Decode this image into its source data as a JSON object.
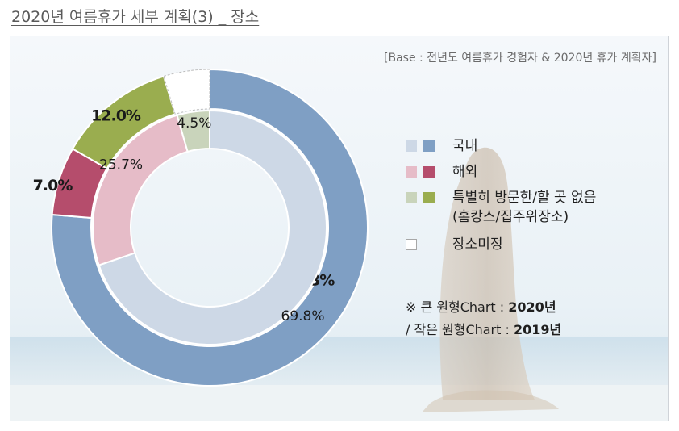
{
  "header": {
    "title": "2020년 여름휴가 세부 계획(3) _ 장소"
  },
  "base_note": "[Base : 전년도 여름휴가 경험자 & 2020년 휴가 계획자]",
  "legend": {
    "items": [
      {
        "label": "국내",
        "color_2020": "#7f9fc4",
        "color_2019": "#cdd8e6"
      },
      {
        "label": "해외",
        "color_2020": "#b54d6c",
        "color_2019": "#e6bcc8"
      },
      {
        "label": "특별히 방문한/할 곳 없음",
        "label_line2": "(홈캉스/집주위장소)",
        "color_2020": "#9aad4f",
        "color_2019": "#c9d4bb"
      },
      {
        "label": "장소미정",
        "color_2020": "#ffffff",
        "color_2019": "#ffffff"
      }
    ]
  },
  "footnote": {
    "line1_prefix": "※ 큰 원형Chart : ",
    "line1_year": "2020년",
    "line2_prefix": "/ 작은 원형Chart : ",
    "line2_year": "2019년"
  },
  "chart_data": [
    {
      "type": "pie",
      "subtype": "donut-outer",
      "name": "2020년",
      "categories": [
        "국내",
        "해외",
        "특별히 방문한/할 곳 없음 (홈캉스/집주위장소)",
        "장소미정"
      ],
      "values": [
        76.3,
        7.0,
        12.0,
        4.7
      ],
      "labels": [
        "76.3%",
        "7.0%",
        "12.0%",
        ""
      ],
      "colors": [
        "#7f9fc4",
        "#b54d6c",
        "#9aad4f",
        "#ffffff"
      ]
    },
    {
      "type": "pie",
      "subtype": "donut-inner",
      "name": "2019년",
      "categories": [
        "국내",
        "해외",
        "특별히 방문한/할 곳 없음 (홈캉스/집주위장소)"
      ],
      "values": [
        69.8,
        25.7,
        4.5
      ],
      "labels": [
        "69.8%",
        "25.7%",
        "4.5%"
      ],
      "colors": [
        "#cdd8e6",
        "#e6bcc8",
        "#c9d4bb"
      ]
    }
  ]
}
